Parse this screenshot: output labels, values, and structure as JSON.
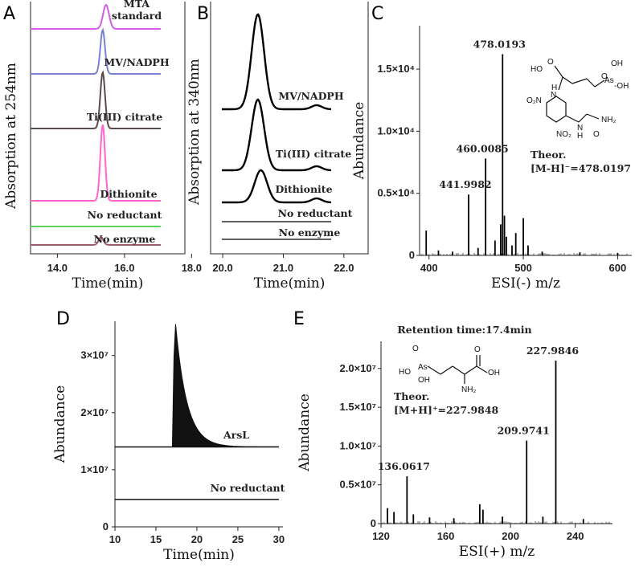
{
  "chart_data": [
    {
      "panel": "A",
      "type": "line",
      "xlabel": "Time(min)",
      "ylabel": "Absorption at 254nm",
      "xticks": [
        "14.0",
        "16.0",
        "18.0"
      ],
      "xlim": [
        13.2,
        17.8
      ],
      "series": [
        {
          "name": "MTA standard",
          "name_lines": [
            "MTA",
            "standard"
          ],
          "color": "#d45ee8",
          "peak_time": 15.45,
          "peak_height": 0.9,
          "width": 0.09
        },
        {
          "name": "MV/NADPH",
          "color": "#7b7fd6",
          "peak_time": 15.35,
          "peak_height": 1.0,
          "width": 0.07
        },
        {
          "name": "Ti(III) citrate",
          "color": "#5a4a4a",
          "peak_time": 15.35,
          "peak_height": 1.0,
          "width": 0.07
        },
        {
          "name": "Dithionite",
          "color": "#ff66cc",
          "peak_time": 15.35,
          "peak_height": 1.0,
          "width": 0.07
        },
        {
          "name": "No reductant",
          "color": "#59d35c",
          "peak_time": 15.35,
          "peak_height": 0,
          "width": 0.07
        },
        {
          "name": "No enzyme",
          "color": "#9b5e6a",
          "peak_time": 15.3,
          "peak_height": 0.15,
          "width": 0.07
        }
      ]
    },
    {
      "panel": "B",
      "type": "line",
      "xlabel": "Time(min)",
      "ylabel": "Absorption at 340nm",
      "xticks": [
        "20.0",
        "21.0",
        "22.0"
      ],
      "xlim": [
        19.8,
        22.4
      ],
      "series": [
        {
          "name": "MV/NADPH",
          "peak_time": 20.58,
          "peak_height": 1.0
        },
        {
          "name": "Ti(III) citrate",
          "peak_time": 20.58,
          "peak_height": 0.8
        },
        {
          "name": "Dithionite",
          "peak_time": 20.63,
          "peak_height": 0.4
        },
        {
          "name": "No reductant",
          "peak_time": 20.6,
          "peak_height": 0
        },
        {
          "name": "No enzyme",
          "peak_time": 20.6,
          "peak_height": 0
        }
      ]
    },
    {
      "panel": "C",
      "type": "bar",
      "xlabel": "ESI(-) m/z",
      "ylabel": "Abundance",
      "xlim": [
        390,
        615
      ],
      "ylim": [
        0,
        18500
      ],
      "xticks": [
        "400",
        "500",
        "600"
      ],
      "yticks": [
        "0",
        "0.5×10⁴",
        "1.0×10⁴",
        "1.5×10⁴"
      ],
      "peaks": [
        {
          "mz": 397.0,
          "value": 2000
        },
        {
          "mz": 410.0,
          "value": 400
        },
        {
          "mz": 425.0,
          "value": 300
        },
        {
          "mz": 441.9982,
          "value": 4900,
          "label": "441.9982"
        },
        {
          "mz": 452.0,
          "value": 600
        },
        {
          "mz": 460.0085,
          "value": 7800,
          "label": "460.0085"
        },
        {
          "mz": 470.0,
          "value": 1200
        },
        {
          "mz": 476.0,
          "value": 2500
        },
        {
          "mz": 478.0193,
          "value": 16200,
          "label": "478.0193"
        },
        {
          "mz": 480.0,
          "value": 3200
        },
        {
          "mz": 482.0,
          "value": 1500
        },
        {
          "mz": 488.0,
          "value": 800
        },
        {
          "mz": 492.0,
          "value": 1800
        },
        {
          "mz": 500.0,
          "value": 3000
        },
        {
          "mz": 505.0,
          "value": 800
        },
        {
          "mz": 520.0,
          "value": 300
        },
        {
          "mz": 560.0,
          "value": 250
        },
        {
          "mz": 600.0,
          "value": 200
        }
      ],
      "annotation": {
        "theor_title": "Theor.",
        "theor_value": "[M-H]⁻=478.0197"
      }
    },
    {
      "panel": "D",
      "type": "area",
      "xlabel": "Time(min)",
      "ylabel": "Abundance",
      "xlim": [
        10,
        30.5
      ],
      "ylim": [
        0,
        36000000
      ],
      "xticks": [
        "10",
        "15",
        "20",
        "25",
        "30"
      ],
      "yticks": [
        "0",
        "1×10⁷",
        "2×10⁷",
        "3×10⁷"
      ],
      "series": [
        {
          "name": "ArsL",
          "baseline": 14000000,
          "peak_time": 17.4,
          "peak_value": 35500000
        },
        {
          "name": "No reductant",
          "baseline": 4800000
        }
      ]
    },
    {
      "panel": "E",
      "type": "bar",
      "title": "Retention time:17.4min",
      "xlabel": "ESI(+) m/z",
      "ylabel": "Abundance",
      "xlim": [
        120,
        263
      ],
      "ylim": [
        0,
        23500000
      ],
      "xticks": [
        "120",
        "160",
        "200",
        "240"
      ],
      "yticks": [
        "0",
        "0.5×10⁷",
        "1.0×10⁷",
        "1.5×10⁷",
        "2.0×10⁷"
      ],
      "peaks": [
        {
          "mz": 124.0,
          "value": 2000000
        },
        {
          "mz": 128.0,
          "value": 1500000
        },
        {
          "mz": 136.0617,
          "value": 6100000,
          "label": "136.0617"
        },
        {
          "mz": 140.0,
          "value": 1200000
        },
        {
          "mz": 150.0,
          "value": 800000
        },
        {
          "mz": 165.0,
          "value": 700000
        },
        {
          "mz": 181.0,
          "value": 2500000
        },
        {
          "mz": 183.0,
          "value": 1800000
        },
        {
          "mz": 195.0,
          "value": 900000
        },
        {
          "mz": 209.9741,
          "value": 10700000,
          "label": "209.9741"
        },
        {
          "mz": 220.0,
          "value": 900000
        },
        {
          "mz": 227.9846,
          "value": 21000000,
          "label": "227.9846"
        },
        {
          "mz": 245.0,
          "value": 600000
        }
      ],
      "annotation": {
        "theor_title": "Theor.",
        "theor_value": "[M+H]⁺=227.9848"
      }
    }
  ],
  "panels": {
    "A": "A",
    "B": "B",
    "C": "C",
    "D": "D",
    "E": "E"
  }
}
